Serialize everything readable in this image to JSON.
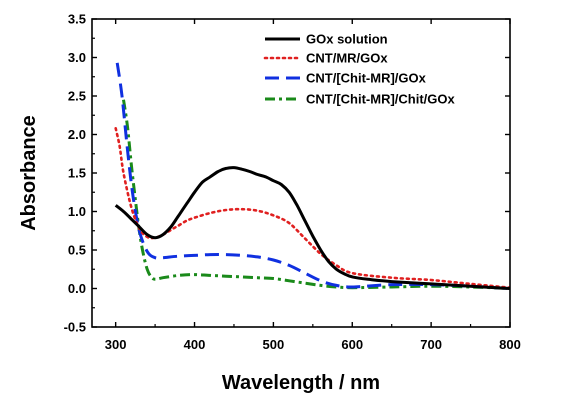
{
  "chart_data": {
    "type": "line",
    "title": "",
    "xlabel": "Wavelength / nm",
    "ylabel": "Absorbance",
    "xlim": [
      270,
      800
    ],
    "ylim": [
      -0.5,
      3.5
    ],
    "xticks": [
      300,
      400,
      500,
      600,
      700,
      800
    ],
    "yticks": [
      -0.5,
      0.0,
      0.5,
      1.0,
      1.5,
      2.0,
      2.5,
      3.0,
      3.5
    ],
    "xtick_labels": [
      "300",
      "400",
      "500",
      "600",
      "700",
      "800"
    ],
    "ytick_labels": [
      "-0.5",
      "0.0",
      "0.5",
      "1.0",
      "1.5",
      "2.0",
      "2.5",
      "3.0",
      "3.5"
    ],
    "grid": false,
    "legend_position": "top-right",
    "series": [
      {
        "name": "GOx solution",
        "color": "#000000",
        "style": "solid",
        "x": [
          300,
          310,
          320,
          330,
          340,
          350,
          360,
          370,
          380,
          390,
          400,
          410,
          420,
          430,
          440,
          450,
          460,
          470,
          480,
          490,
          500,
          510,
          520,
          530,
          540,
          550,
          560,
          570,
          580,
          590,
          600,
          620,
          650,
          700,
          750,
          800
        ],
        "y": [
          1.08,
          1.0,
          0.9,
          0.8,
          0.7,
          0.66,
          0.7,
          0.8,
          0.95,
          1.1,
          1.25,
          1.38,
          1.45,
          1.52,
          1.56,
          1.57,
          1.55,
          1.52,
          1.48,
          1.45,
          1.4,
          1.35,
          1.25,
          1.08,
          0.88,
          0.68,
          0.5,
          0.35,
          0.25,
          0.19,
          0.15,
          0.12,
          0.09,
          0.06,
          0.03,
          0.0
        ]
      },
      {
        "name": "CNT/MR/GOx",
        "color": "#e02020",
        "style": "dotted",
        "x": [
          300,
          305,
          310,
          320,
          330,
          340,
          350,
          360,
          370,
          380,
          390,
          400,
          420,
          440,
          460,
          480,
          500,
          520,
          540,
          560,
          580,
          600,
          650,
          700,
          750,
          800
        ],
        "y": [
          2.08,
          1.85,
          1.5,
          1.05,
          0.78,
          0.67,
          0.66,
          0.7,
          0.76,
          0.82,
          0.88,
          0.92,
          0.98,
          1.02,
          1.03,
          1.01,
          0.95,
          0.85,
          0.65,
          0.45,
          0.3,
          0.2,
          0.14,
          0.11,
          0.06,
          0.01
        ]
      },
      {
        "name": "CNT/[Chit-MR]/GOx",
        "color": "#1030e0",
        "style": "dashed",
        "x": [
          302,
          308,
          315,
          322,
          330,
          340,
          350,
          360,
          380,
          400,
          420,
          440,
          460,
          480,
          500,
          520,
          540,
          560,
          580,
          600,
          650,
          700,
          750,
          800
        ],
        "y": [
          2.93,
          2.5,
          1.8,
          1.2,
          0.75,
          0.48,
          0.4,
          0.4,
          0.42,
          0.43,
          0.44,
          0.44,
          0.43,
          0.41,
          0.37,
          0.3,
          0.2,
          0.1,
          0.04,
          0.02,
          0.05,
          0.05,
          0.03,
          0.0
        ]
      },
      {
        "name": "CNT/[Chit-MR]/Chit/GOx",
        "color": "#1a8a1a",
        "style": "dashdot",
        "x": [
          310,
          315,
          320,
          325,
          330,
          335,
          340,
          345,
          350,
          360,
          380,
          400,
          420,
          440,
          460,
          480,
          500,
          520,
          540,
          560,
          580,
          600,
          650,
          700,
          750,
          800
        ],
        "y": [
          2.45,
          2.1,
          1.6,
          1.15,
          0.75,
          0.45,
          0.25,
          0.15,
          0.12,
          0.14,
          0.17,
          0.18,
          0.17,
          0.16,
          0.15,
          0.14,
          0.13,
          0.1,
          0.07,
          0.04,
          0.02,
          0.01,
          0.02,
          0.03,
          0.02,
          0.0
        ]
      }
    ]
  }
}
